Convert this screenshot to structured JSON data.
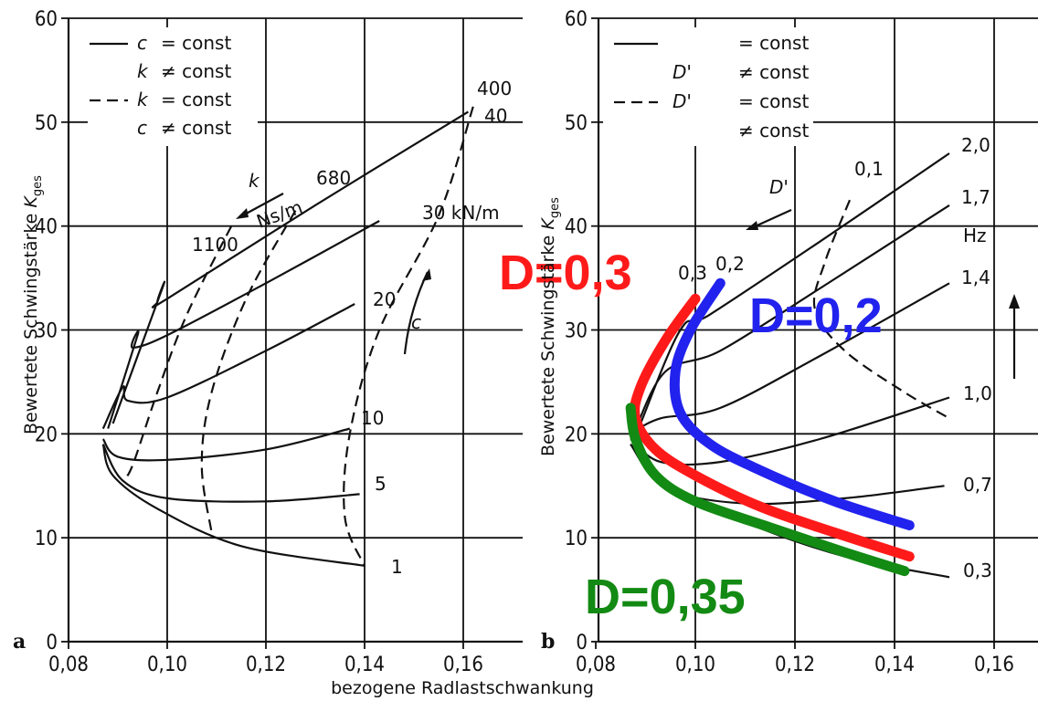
{
  "shared": {
    "x_axis_label": "bezogene Radlastschwankung",
    "y_axis_label": "Bewertete Schwingstärke K_ges"
  },
  "chart_data": [
    {
      "type": "line",
      "panel": "a",
      "xlim": [
        0.08,
        0.17
      ],
      "ylim": [
        0,
        60
      ],
      "x_ticks": [
        "0,08",
        "0,10",
        "0,12",
        "0,14",
        "0,16"
      ],
      "y_ticks": [
        "0",
        "10",
        "20",
        "30",
        "40",
        "50",
        "60"
      ],
      "legend": [
        {
          "style": "solid",
          "symbol1": "c",
          "text1": "= const",
          "symbol2": "k",
          "text2": "≠ const"
        },
        {
          "style": "dashed",
          "symbol1": "k",
          "text1": "= const",
          "symbol2": "c",
          "text2": "≠ const"
        }
      ],
      "solid_series": [
        {
          "label": "1",
          "points": [
            [
              0.14,
              7.3
            ],
            [
              0.115,
              9.2
            ],
            [
              0.098,
              12.8
            ],
            [
              0.089,
              16.0
            ],
            [
              0.087,
              19.0
            ]
          ]
        },
        {
          "label": "5",
          "points": [
            [
              0.139,
              14.2
            ],
            [
              0.12,
              13.5
            ],
            [
              0.1,
              13.8
            ],
            [
              0.091,
              15.5
            ],
            [
              0.087,
              19.0
            ]
          ]
        },
        {
          "label": "10",
          "points": [
            [
              0.137,
              20.5
            ],
            [
              0.12,
              18.5
            ],
            [
              0.1,
              17.5
            ],
            [
              0.09,
              17.8
            ],
            [
              0.087,
              19.5
            ]
          ]
        },
        {
          "label": "20",
          "points": [
            [
              0.138,
              32.5
            ],
            [
              0.12,
              28.0
            ],
            [
              0.1,
              23.5
            ],
            [
              0.092,
              23.2
            ],
            [
              0.091,
              24.5
            ],
            [
              0.087,
              20.5
            ]
          ]
        },
        {
          "label": "30 kN/m",
          "points": [
            [
              0.143,
              40.5
            ],
            [
              0.12,
              34.5
            ],
            [
              0.1,
              29.5
            ],
            [
              0.093,
              28.3
            ],
            [
              0.094,
              29.5
            ],
            [
              0.088,
              20.5
            ]
          ]
        },
        {
          "label": "40",
          "points": [
            [
              0.161,
              51.0
            ],
            [
              0.13,
              42.0
            ],
            [
              0.1,
              33.0
            ],
            [
              0.098,
              32.7
            ],
            [
              0.099,
              34.0
            ],
            [
              0.089,
              21.0
            ]
          ]
        }
      ],
      "dashed_series": [
        {
          "label": "400",
          "points": [
            [
              0.162,
              51.5
            ],
            [
              0.155,
              41.0
            ],
            [
              0.143,
              30.0
            ],
            [
              0.137,
              20.0
            ],
            [
              0.136,
              12.0
            ],
            [
              0.14,
              7.3
            ]
          ]
        },
        {
          "label": "680",
          "points": [
            [
              0.126,
              41.5
            ],
            [
              0.116,
              33.0
            ],
            [
              0.109,
              24.0
            ],
            [
              0.107,
              17.0
            ],
            [
              0.109,
              10.5
            ]
          ]
        },
        {
          "label": "1100",
          "points": [
            [
              0.113,
              40.0
            ],
            [
              0.104,
              31.5
            ],
            [
              0.098,
              24.0
            ],
            [
              0.093,
              17.0
            ],
            [
              0.091,
              15.5
            ]
          ]
        }
      ],
      "annotations": [
        "400",
        "40",
        "680",
        "1100",
        "30 kN/m",
        "20",
        "10",
        "5",
        "1",
        "k",
        "Ns/m",
        "c"
      ]
    },
    {
      "type": "line",
      "panel": "b",
      "xlim": [
        0.08,
        0.17
      ],
      "ylim": [
        0,
        60
      ],
      "x_ticks": [
        "0,08",
        "0,10",
        "0,12",
        "0,14",
        "0,16"
      ],
      "y_ticks": [
        "0",
        "10",
        "20",
        "30",
        "40",
        "50",
        "60"
      ],
      "legend": [
        {
          "style": "solid",
          "symbol1": "",
          "text1": "= const",
          "symbol2": "D'",
          "text2": "≠ const"
        },
        {
          "style": "dashed",
          "symbol1": "D'",
          "text1": "= const",
          "symbol2": "",
          "text2": "≠ const"
        }
      ],
      "solid_series": [
        {
          "label": "0,3",
          "points": [
            [
              0.151,
              6.2
            ],
            [
              0.13,
              8.2
            ],
            [
              0.11,
              11.5
            ],
            [
              0.093,
              15.5
            ],
            [
              0.087,
              19.0
            ]
          ]
        },
        {
          "label": "0,7",
          "points": [
            [
              0.15,
              15.0
            ],
            [
              0.13,
              13.8
            ],
            [
              0.11,
              13.3
            ],
            [
              0.094,
              14.8
            ],
            [
              0.087,
              19.0
            ]
          ]
        },
        {
          "label": "1,0",
          "points": [
            [
              0.151,
              23.5
            ],
            [
              0.125,
              19.5
            ],
            [
              0.105,
              17.3
            ],
            [
              0.093,
              17.3
            ],
            [
              0.087,
              19.5
            ]
          ]
        },
        {
          "label": "1,4",
          "points": [
            [
              0.151,
              34.5
            ],
            [
              0.125,
              27.5
            ],
            [
              0.105,
              22.5
            ],
            [
              0.093,
              21.5
            ],
            [
              0.087,
              20.0
            ]
          ]
        },
        {
          "label": "1,7",
          "points": [
            [
              0.151,
              42.0
            ],
            [
              0.125,
              34.0
            ],
            [
              0.105,
              28.0
            ],
            [
              0.094,
              26.0
            ],
            [
              0.088,
              20.5
            ]
          ]
        },
        {
          "label": "2,0",
          "points": [
            [
              0.151,
              47.0
            ],
            [
              0.125,
              38.5
            ],
            [
              0.103,
              31.5
            ],
            [
              0.097,
              30.0
            ],
            [
              0.089,
              21.0
            ]
          ]
        }
      ],
      "dashed_series": [
        {
          "label": "0,1",
          "points": [
            [
              0.131,
              42.5
            ],
            [
              0.126,
              36.5
            ],
            [
              0.124,
              32.0
            ],
            [
              0.13,
              28.0
            ],
            [
              0.142,
              24.0
            ],
            [
              0.151,
              21.5
            ]
          ]
        }
      ],
      "highlighted_series": [
        {
          "name": "D=0,3",
          "color": "#ff1a1a",
          "points": [
            [
              0.1,
              33.0
            ],
            [
              0.094,
              29.0
            ],
            [
              0.089,
              24.5
            ],
            [
              0.088,
              21.5
            ],
            [
              0.092,
              18.5
            ],
            [
              0.1,
              16.0
            ],
            [
              0.113,
              13.0
            ],
            [
              0.128,
              10.5
            ],
            [
              0.143,
              8.2
            ]
          ]
        },
        {
          "name": "D=0,2",
          "color": "#2222ee",
          "points": [
            [
              0.105,
              34.5
            ],
            [
              0.099,
              30.0
            ],
            [
              0.096,
              26.0
            ],
            [
              0.097,
              22.0
            ],
            [
              0.103,
              19.0
            ],
            [
              0.113,
              16.5
            ],
            [
              0.128,
              13.5
            ],
            [
              0.143,
              11.2
            ]
          ]
        },
        {
          "name": "D=0,35",
          "color": "#138a13",
          "points": [
            [
              0.087,
              22.5
            ],
            [
              0.088,
              19.5
            ],
            [
              0.092,
              16.0
            ],
            [
              0.1,
              13.5
            ],
            [
              0.115,
              11.0
            ],
            [
              0.13,
              8.6
            ],
            [
              0.142,
              6.8
            ]
          ]
        }
      ],
      "annotations": [
        "2,0",
        "1,7",
        "Hz",
        "1,4",
        "1,0",
        "0,7",
        "0,3",
        "0,1",
        "0,2",
        "0,3",
        "D'"
      ],
      "overlay_labels": [
        {
          "text": "D=0,3",
          "color": "#ff1a1a"
        },
        {
          "text": "D=0,2",
          "color": "#2222ee"
        },
        {
          "text": "D=0,35",
          "color": "#138a13"
        }
      ]
    }
  ]
}
